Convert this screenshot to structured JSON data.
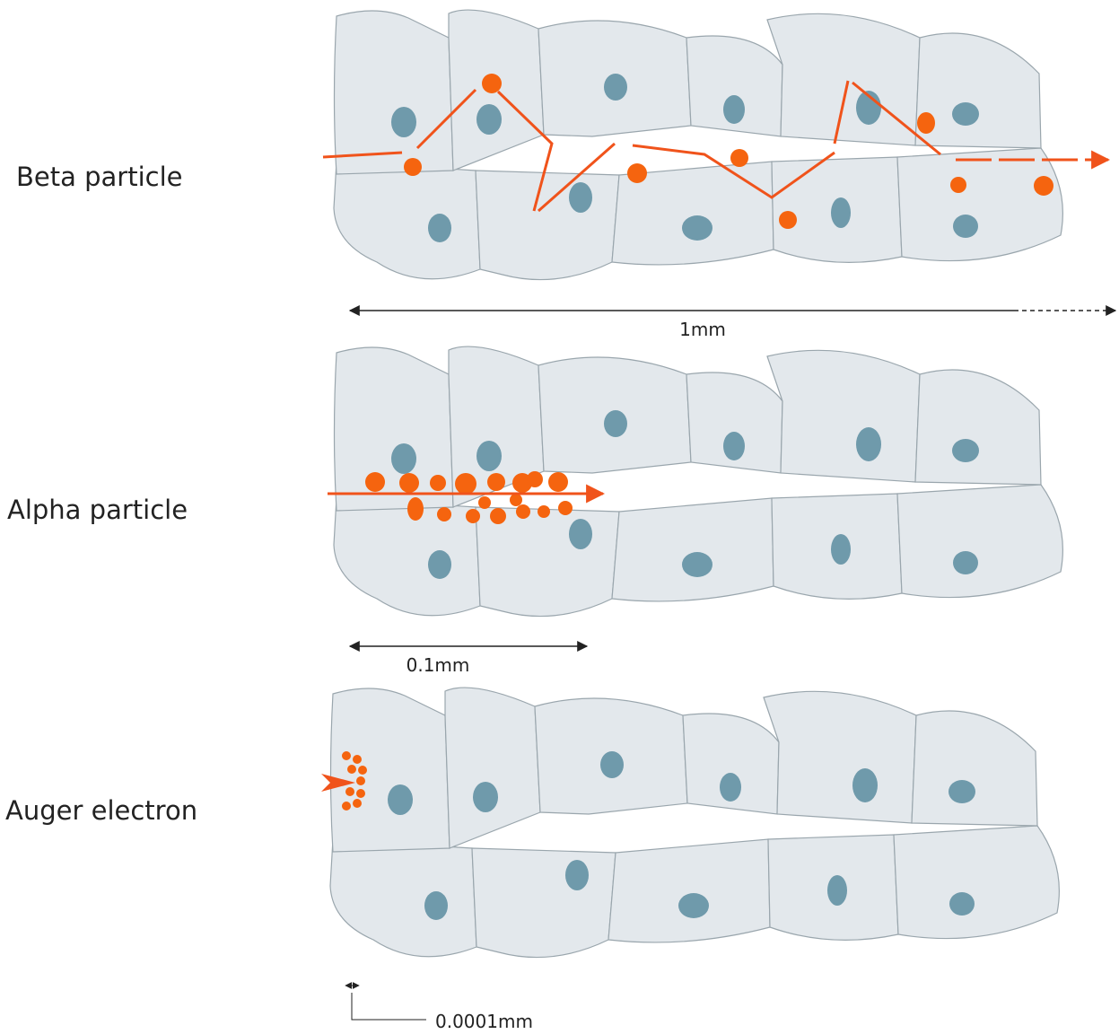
{
  "panels": [
    {
      "label": "Beta particle",
      "scale": "1mm"
    },
    {
      "label": "Alpha particle",
      "scale": "0.1mm"
    },
    {
      "label": "Auger electron",
      "scale": "0.0001mm"
    }
  ]
}
